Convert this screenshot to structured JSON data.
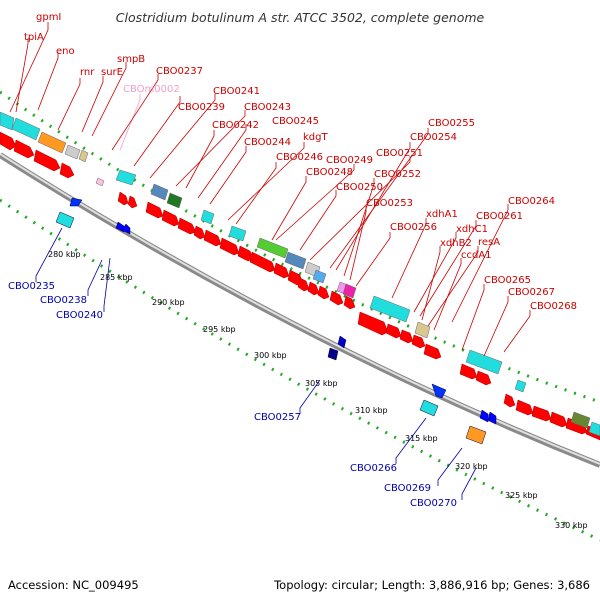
{
  "title": "Clostridium botulinum A str. ATCC 3502, complete genome",
  "footer": {
    "accession": "Accession: NC_009495",
    "topology": "Topology: circular; Length: 3,886,916 bp; Genes: 3,686"
  },
  "ticks": [
    "280 kbp",
    "285 kbp",
    "290 kbp",
    "295 kbp",
    "300 kbp",
    "305 kbp",
    "310 kbp",
    "315 kbp",
    "320 kbp",
    "325 kbp",
    "330 kbp"
  ],
  "labels": [
    {
      "text": "gpmI",
      "strand": "forward"
    },
    {
      "text": "tpiA",
      "strand": "forward"
    },
    {
      "text": "eno",
      "strand": "forward"
    },
    {
      "text": "rnr",
      "strand": "forward"
    },
    {
      "text": "surE",
      "strand": "forward"
    },
    {
      "text": "smpB",
      "strand": "forward"
    },
    {
      "text": "CBOm0002",
      "strand": "forward"
    },
    {
      "text": "CBO0237",
      "strand": "forward"
    },
    {
      "text": "CBO0241",
      "strand": "forward"
    },
    {
      "text": "CBO0239",
      "strand": "forward"
    },
    {
      "text": "CBO0243",
      "strand": "forward"
    },
    {
      "text": "CBO0242",
      "strand": "forward"
    },
    {
      "text": "CBO0245",
      "strand": "forward"
    },
    {
      "text": "CBO0244",
      "strand": "forward"
    },
    {
      "text": "kdgT",
      "strand": "forward"
    },
    {
      "text": "CBO0246",
      "strand": "forward"
    },
    {
      "text": "CBO0249",
      "strand": "forward"
    },
    {
      "text": "CBO0248",
      "strand": "forward"
    },
    {
      "text": "CBO0251",
      "strand": "forward"
    },
    {
      "text": "CBO0250",
      "strand": "forward"
    },
    {
      "text": "CBO0255",
      "strand": "forward"
    },
    {
      "text": "CBO0254",
      "strand": "forward"
    },
    {
      "text": "CBO0252",
      "strand": "forward"
    },
    {
      "text": "CBO0253",
      "strand": "forward"
    },
    {
      "text": "xdhA1",
      "strand": "forward"
    },
    {
      "text": "CBO0256",
      "strand": "forward"
    },
    {
      "text": "xdhC1",
      "strand": "forward"
    },
    {
      "text": "CBO0261",
      "strand": "forward"
    },
    {
      "text": "CBO0264",
      "strand": "forward"
    },
    {
      "text": "xdhB2",
      "strand": "forward"
    },
    {
      "text": "resA",
      "strand": "forward"
    },
    {
      "text": "ccdA1",
      "strand": "forward"
    },
    {
      "text": "CBO0265",
      "strand": "forward"
    },
    {
      "text": "CBO0267",
      "strand": "forward"
    },
    {
      "text": "CBO0268",
      "strand": "forward"
    },
    {
      "text": "CBO0235",
      "strand": "reverse"
    },
    {
      "text": "CBO0238",
      "strand": "reverse"
    },
    {
      "text": "CBO0240",
      "strand": "reverse"
    },
    {
      "text": "CBO0257",
      "strand": "reverse"
    },
    {
      "text": "CBO0266",
      "strand": "reverse"
    },
    {
      "text": "CBO0269",
      "strand": "reverse"
    },
    {
      "text": "CBO0270",
      "strand": "reverse"
    }
  ],
  "colors": {
    "forward_label": "#cc0000",
    "reverse_label": "#0000aa",
    "rna_label": "#f0a0c8",
    "forward_gene": "#ff0000",
    "reverse_gene": "#0000ff",
    "backbone": "#999999",
    "tick_dots": "#22aa22"
  }
}
